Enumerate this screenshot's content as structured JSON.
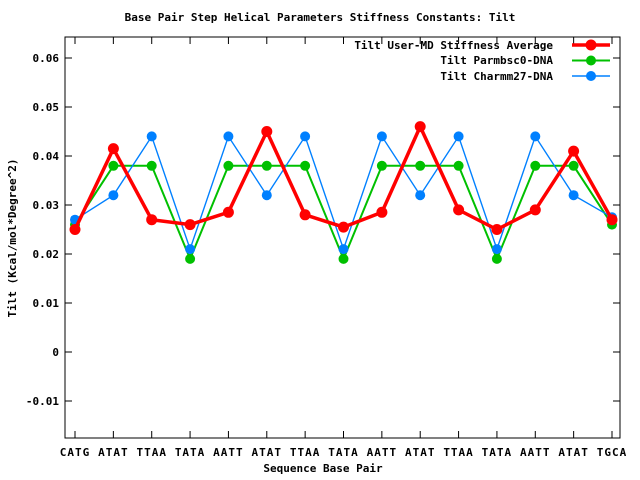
{
  "chart_data": {
    "type": "line",
    "title": "Base Pair Step Helical Parameters Stiffness Constants: Tilt",
    "xlabel": "Sequence Base Pair",
    "ylabel": "Tilt (Kcal/mol*Degree^2)",
    "categories": [
      "CATG",
      "ATAT",
      "TTAA",
      "TATA",
      "AATT",
      "ATAT",
      "TTAA",
      "TATA",
      "AATT",
      "ATAT",
      "TTAA",
      "TATA",
      "AATT",
      "ATAT",
      "TGCA"
    ],
    "series": [
      {
        "name": "Tilt User-MD Stiffness Average",
        "color": "#ff0000",
        "marker": "filled-circle",
        "values": [
          0.025,
          0.0415,
          0.027,
          0.026,
          0.0285,
          0.045,
          0.028,
          0.0255,
          0.0285,
          0.046,
          0.029,
          0.025,
          0.029,
          0.041,
          0.027
        ]
      },
      {
        "name": "Tilt Parmbsc0-DNA",
        "color": "#00c000",
        "marker": "filled-circle",
        "values": [
          0.026,
          0.038,
          0.038,
          0.019,
          0.038,
          0.038,
          0.038,
          0.019,
          0.038,
          0.038,
          0.038,
          0.019,
          0.038,
          0.038,
          0.026
        ]
      },
      {
        "name": "Tilt Charmm27-DNA",
        "color": "#0080ff",
        "marker": "filled-circle",
        "values": [
          0.027,
          0.032,
          0.044,
          0.021,
          0.044,
          0.032,
          0.044,
          0.021,
          0.044,
          0.032,
          0.044,
          0.021,
          0.044,
          0.032,
          0.0275
        ]
      }
    ],
    "yticks": [
      -0.01,
      0,
      0.01,
      0.02,
      0.03,
      0.04,
      0.05,
      0.06
    ],
    "ytick_labels": [
      "-0.01",
      "0",
      "0.01",
      "0.02",
      "0.03",
      "0.04",
      "0.05",
      "0.06"
    ],
    "ylim": [
      -0.0175,
      0.064
    ],
    "grid": false,
    "legend_position": "top-right-inside",
    "axis_color": "#000000",
    "background_color": "#ffffff"
  }
}
